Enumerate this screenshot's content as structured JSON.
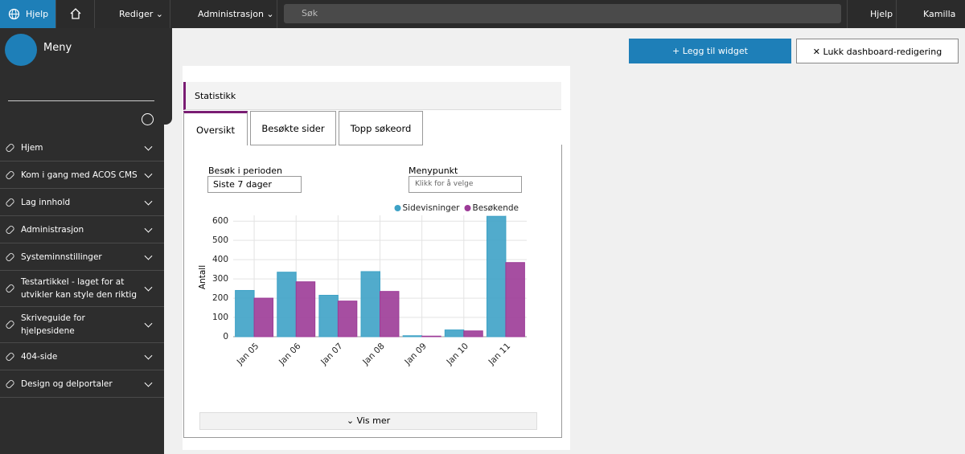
{
  "topbar": {
    "help_button": "Hjelp",
    "edit": "Rediger",
    "admin": "Administrasjon",
    "search_placeholder": "Søk",
    "help": "Hjelp",
    "user": "Kamilla"
  },
  "sidebar": {
    "title": "Meny",
    "items": [
      "Hjem",
      "Kom i gang med ACOS CMS",
      "Lag innhold",
      "Administrasjon",
      "Systeminnstillinger",
      "Testartikkel - laget for at utvikler kan style den riktig",
      "Skriveguide for hjelpesidene",
      "404-side",
      "Design og delportaler"
    ]
  },
  "actions": {
    "add_widget": "Legg til widget",
    "close_editing": "Lukk dashboard-redigering"
  },
  "widget": {
    "title": "Statistikk",
    "tabs": [
      "Oversikt",
      "Besøkte sider",
      "Topp søkeord"
    ],
    "period_label": "Besøk i perioden",
    "period_value": "Siste 7 dager",
    "menu_label": "Menypunkt",
    "menu_placeholder": "Klikk for å velge",
    "more": "Vis mer"
  },
  "chart_data": {
    "type": "bar",
    "y_label": "Antall",
    "categories": [
      "Jan 05",
      "Jan 06",
      "Jan 07",
      "Jan 08",
      "Jan 09",
      "Jan 10",
      "Jan 11"
    ],
    "series": [
      {
        "name": "Sidevisninger",
        "color": "#3ea2c6",
        "values": [
          240,
          335,
          215,
          338,
          5,
          35,
          625
        ]
      },
      {
        "name": "Besøkende",
        "color": "#9c3b97",
        "values": [
          200,
          285,
          185,
          235,
          3,
          30,
          385
        ]
      }
    ],
    "ylim": [
      0,
      630
    ],
    "yticks": [
      0,
      100,
      200,
      300,
      400,
      500,
      600
    ],
    "grid": true,
    "legend": "top-right"
  }
}
